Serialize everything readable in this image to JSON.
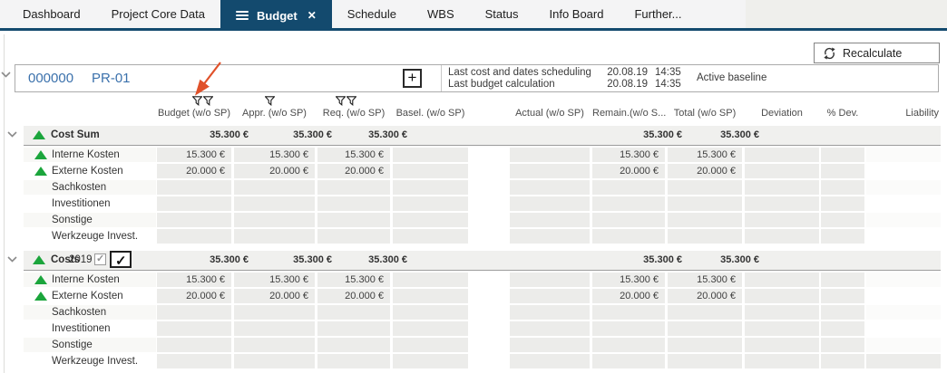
{
  "icons": {
    "close": "✕",
    "plus": "+",
    "check": "✓"
  },
  "colors": {
    "accent_navy": "#134a6e",
    "trend_green": "#1ba53c",
    "link_blue": "#3b71ac",
    "annotation_arrow": "#e0512a"
  },
  "tabs": [
    {
      "label": "Dashboard"
    },
    {
      "label": "Project Core Data"
    },
    {
      "label": "Budget",
      "active": true
    },
    {
      "label": "Schedule"
    },
    {
      "label": "WBS"
    },
    {
      "label": "Status"
    },
    {
      "label": "Info Board"
    },
    {
      "label": "Further..."
    }
  ],
  "toolbar": {
    "recalculate_label": "Recalculate"
  },
  "project": {
    "id": "000000",
    "name": "PR-01",
    "info": [
      {
        "label": "Last cost and dates scheduling",
        "date": "20.08.19",
        "time": "14:35"
      },
      {
        "label": "Last budget calculation",
        "date": "20.08.19",
        "time": "14:35"
      }
    ],
    "baseline": "Active baseline"
  },
  "table": {
    "columns": [
      {
        "label": "Budget (w/o SP)",
        "filters": 2
      },
      {
        "label": "Appr. (w/o SP)",
        "filters": 1
      },
      {
        "label": "Req. (w/o SP)",
        "filters": 2
      },
      {
        "label": "Basel. (w/o SP)",
        "filters": 0
      },
      {
        "label": "Actual (w/o SP)",
        "filters": 0
      },
      {
        "label": "Remain.(w/o S...",
        "filters": 0
      },
      {
        "label": "Total (w/o SP)",
        "filters": 0
      },
      {
        "label": "Deviation",
        "filters": 0
      },
      {
        "label": "% Dev.",
        "filters": 0
      },
      {
        "label": "Liability",
        "filters": 0
      }
    ],
    "groups": [
      {
        "header": {
          "label": "Cost Sum",
          "trend": "up",
          "values": [
            "35.300 €",
            "35.300 €",
            "35.300 €",
            "",
            "",
            "35.300 €",
            "35.300 €",
            "",
            "",
            ""
          ]
        },
        "rows": [
          {
            "label": "Interne Kosten",
            "trend": "up",
            "values": [
              "15.300 €",
              "15.300 €",
              "15.300 €",
              "",
              "",
              "15.300 €",
              "15.300 €",
              "",
              "",
              ""
            ]
          },
          {
            "label": "Externe Kosten",
            "trend": "up",
            "values": [
              "20.000 €",
              "20.000 €",
              "20.000 €",
              "",
              "",
              "20.000 €",
              "20.000 €",
              "",
              "",
              ""
            ]
          },
          {
            "label": "Sachkosten",
            "values": [
              "",
              "",
              "",
              "",
              "",
              "",
              "",
              "",
              "",
              ""
            ]
          },
          {
            "label": "Investitionen",
            "values": [
              "",
              "",
              "",
              "",
              "",
              "",
              "",
              "",
              "",
              ""
            ]
          },
          {
            "label": "Sonstige",
            "values": [
              "",
              "",
              "",
              "",
              "",
              "",
              "",
              "",
              "",
              ""
            ]
          },
          {
            "label": "Werkzeuge Invest.",
            "values": [
              "",
              "",
              "",
              "",
              "",
              "",
              "",
              "",
              "",
              ""
            ]
          }
        ]
      },
      {
        "header": {
          "label": "Costs",
          "trend": "up",
          "year": "2019",
          "readonly_checkbox_checked": true,
          "editor_checkbox_checked": true,
          "values": [
            "35.300 €",
            "35.300 €",
            "35.300 €",
            "",
            "",
            "35.300 €",
            "35.300 €",
            "",
            "",
            ""
          ]
        },
        "rows": [
          {
            "label": "Interne Kosten",
            "trend": "up",
            "values": [
              "15.300 €",
              "15.300 €",
              "15.300 €",
              "",
              "",
              "15.300 €",
              "15.300 €",
              "",
              "",
              ""
            ]
          },
          {
            "label": "Externe Kosten",
            "trend": "up",
            "values": [
              "20.000 €",
              "20.000 €",
              "20.000 €",
              "",
              "",
              "20.000 €",
              "20.000 €",
              "",
              "",
              ""
            ]
          },
          {
            "label": "Sachkosten",
            "values": [
              "",
              "",
              "",
              "",
              "",
              "",
              "",
              "",
              "",
              ""
            ]
          },
          {
            "label": "Investitionen",
            "values": [
              "",
              "",
              "",
              "",
              "",
              "",
              "",
              "",
              "",
              ""
            ]
          },
          {
            "label": "Sonstige",
            "values": [
              "",
              "",
              "",
              "",
              "",
              "",
              "",
              "",
              "",
              ""
            ]
          },
          {
            "label": "Werkzeuge Invest.",
            "liability_readonly": true,
            "values": [
              "",
              "",
              "",
              "",
              "",
              "",
              "",
              "",
              "",
              ""
            ]
          }
        ]
      }
    ]
  }
}
